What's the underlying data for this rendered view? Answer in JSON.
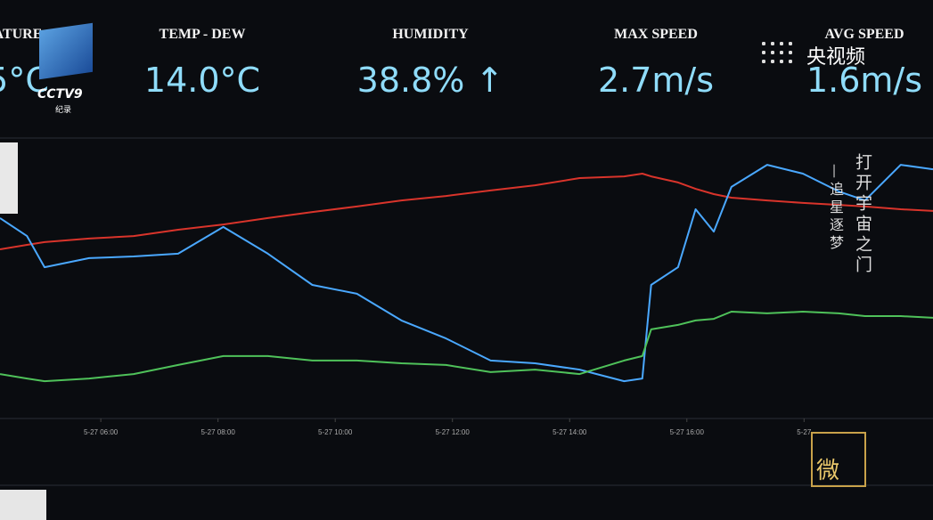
{
  "header": {
    "stats": [
      {
        "label": "ATURE",
        "value": "5°C"
      },
      {
        "label": "TEMP - DEW",
        "value": "14.0°C"
      },
      {
        "label": "HUMIDITY",
        "value": "38.8% ↑"
      },
      {
        "label": "MAX SPEED",
        "value": "2.7m/s"
      },
      {
        "label": "AVG SPEED",
        "value": "1.6m/s"
      }
    ]
  },
  "overlay": {
    "channel": "CCTV9",
    "channel_sub": "纪录",
    "app": "央视频",
    "poem": "打开宇宙之门",
    "poem_sub": "—追星逐梦",
    "badge": "微"
  },
  "chart_data": {
    "type": "line",
    "x": [
      4.28,
      4.74,
      5.04,
      5.8,
      6.56,
      7.32,
      8.09,
      8.85,
      9.61,
      10.37,
      11.13,
      11.89,
      12.65,
      13.41,
      14.17,
      14.93,
      15.24,
      15.39,
      15.85,
      16.15,
      16.46,
      16.76,
      17.37,
      17.98,
      18.59,
      19.04,
      19.65,
      20.2
    ],
    "xlim": [
      4.28,
      20.2
    ],
    "xticks": [
      {
        "value": 6,
        "label": "5-27 06:00"
      },
      {
        "value": 8,
        "label": "5-27 08:00"
      },
      {
        "value": 10,
        "label": "5-27 10:00"
      },
      {
        "value": 12,
        "label": "5-27 12:00"
      },
      {
        "value": 14,
        "label": "5-27 14:00"
      },
      {
        "value": 16,
        "label": "5-27 16:00"
      },
      {
        "value": 18,
        "label": "5-27"
      }
    ],
    "ylim": [
      0,
      100
    ],
    "series": [
      {
        "color": "#d9342b",
        "values": [
          61.3,
          62.9,
          63.9,
          65.2,
          66.1,
          68.4,
          70.3,
          72.6,
          74.8,
          76.8,
          79.0,
          80.6,
          82.6,
          84.5,
          87.1,
          87.7,
          88.7,
          87.7,
          85.5,
          83.2,
          81.3,
          80.0,
          79.0,
          78.1,
          77.4,
          76.8,
          75.8,
          75.2
        ]
      },
      {
        "color": "#4aa8ff",
        "values": [
          72.6,
          66.1,
          54.8,
          58.1,
          58.7,
          59.7,
          69.4,
          59.7,
          48.4,
          45.2,
          35.5,
          29.0,
          21.0,
          20.0,
          17.7,
          13.5,
          14.5,
          48.4,
          54.8,
          75.8,
          67.7,
          83.9,
          91.9,
          88.7,
          82.3,
          79.0,
          91.9,
          90.3
        ]
      },
      {
        "color": "#4fc25a",
        "values": [
          16.1,
          14.5,
          13.5,
          14.5,
          16.1,
          19.4,
          22.6,
          22.6,
          21.0,
          21.0,
          20.0,
          19.4,
          16.8,
          17.7,
          16.1,
          21.0,
          22.6,
          32.3,
          33.9,
          35.5,
          36.1,
          38.7,
          38.1,
          38.7,
          38.1,
          37.1,
          37.1,
          36.5
        ]
      }
    ]
  }
}
